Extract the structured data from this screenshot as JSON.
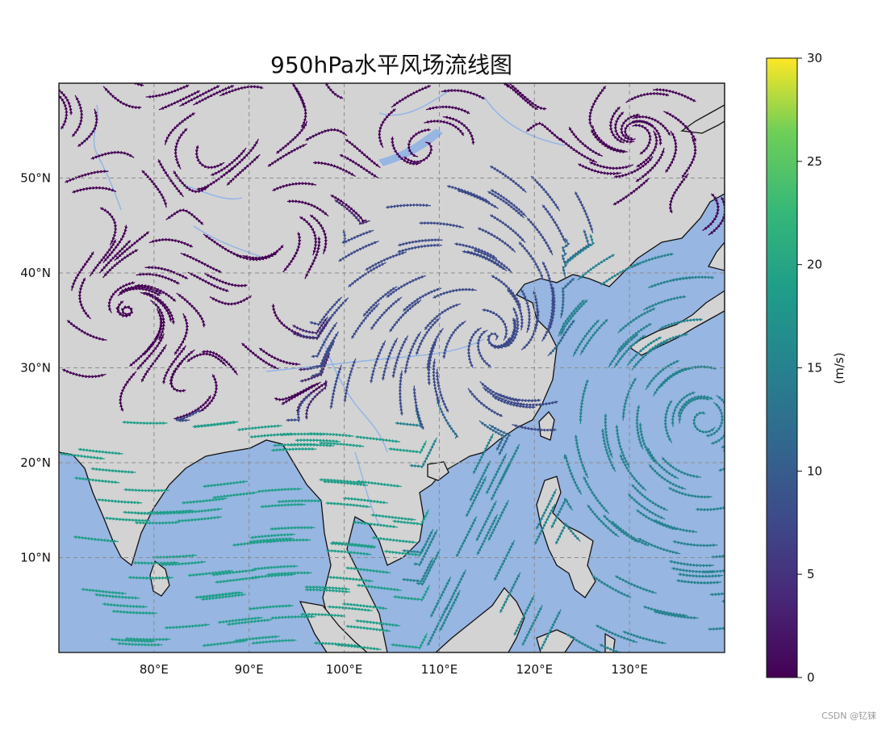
{
  "title": "950hPa水平风场流线图",
  "map": {
    "lon_range": [
      70,
      140
    ],
    "lat_range": [
      0,
      60
    ],
    "x_ticks": [
      {
        "value": 80,
        "label": "80°E"
      },
      {
        "value": 90,
        "label": "90°E"
      },
      {
        "value": 100,
        "label": "100°E"
      },
      {
        "value": 110,
        "label": "110°E"
      },
      {
        "value": 120,
        "label": "120°E"
      },
      {
        "value": 130,
        "label": "130°E"
      }
    ],
    "y_ticks": [
      {
        "value": 10,
        "label": "10°N"
      },
      {
        "value": 20,
        "label": "20°N"
      },
      {
        "value": 30,
        "label": "30°N"
      },
      {
        "value": 40,
        "label": "40°N"
      },
      {
        "value": 50,
        "label": "50°N"
      }
    ],
    "grid": "dashed",
    "colors": {
      "land": "#d3d3d3",
      "ocean": "#97b6e1",
      "rivers": "#8fb4e8",
      "coast": "#111111"
    }
  },
  "colorbar": {
    "label": "(m/s)",
    "range": [
      0,
      30
    ],
    "ticks": [
      {
        "value": 0,
        "label": "0"
      },
      {
        "value": 5,
        "label": "5"
      },
      {
        "value": 10,
        "label": "10"
      },
      {
        "value": 15,
        "label": "15"
      },
      {
        "value": 20,
        "label": "20"
      },
      {
        "value": 25,
        "label": "25"
      },
      {
        "value": 30,
        "label": "30"
      }
    ],
    "colormap": "viridis"
  },
  "watermark": "CSDN @钇铼"
}
